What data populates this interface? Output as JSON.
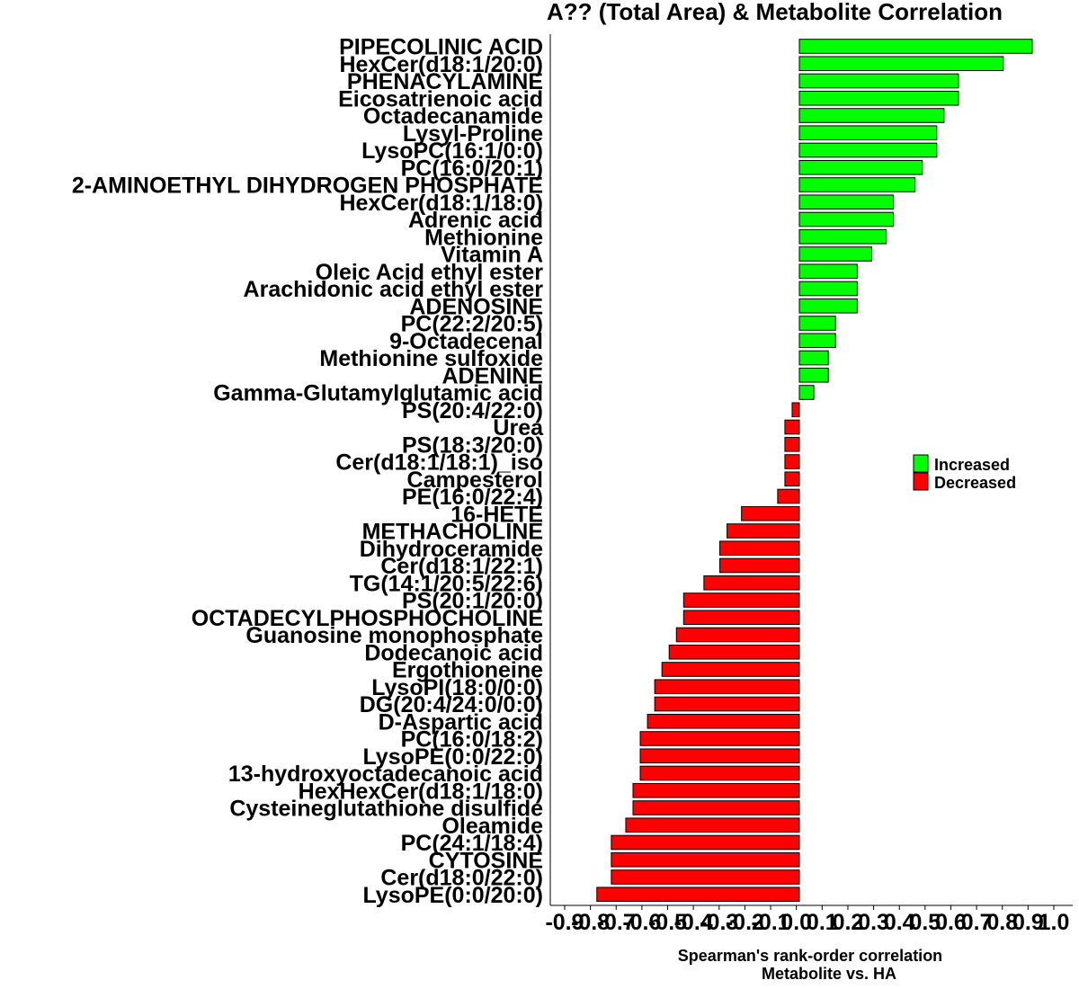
{
  "chart_data": {
    "type": "bar",
    "orientation": "horizontal",
    "title": "A?? (Total Area) & Metabolite Correlation",
    "xlabel_line1": "Spearman's rank-order correlation",
    "xlabel_line2": "Metabolite vs. HA",
    "xlim": [
      -0.9,
      1.0
    ],
    "xticks": [
      "-0.9",
      "-0.8",
      "-0.7",
      "-0.6",
      "-0.5",
      "-0.4",
      "-0.3",
      "-0.2",
      "-0.1",
      "0.0",
      "0.1",
      "0.2",
      "0.3",
      "0.4",
      "0.5",
      "0.6",
      "0.7",
      "0.8",
      "0.9",
      "1.0"
    ],
    "xtick_values": [
      -0.9,
      -0.8,
      -0.7,
      -0.6,
      -0.5,
      -0.4,
      -0.3,
      -0.2,
      -0.1,
      0.0,
      0.1,
      0.2,
      0.3,
      0.4,
      0.5,
      0.6,
      0.7,
      0.8,
      0.9,
      1.0
    ],
    "categories": [
      "PIPECOLINIC ACID",
      "HexCer(d18:1/20:0)",
      "PHENACYLAMINE",
      "Eicosatrienoic acid",
      "Octadecanamide",
      "Lysyl-Proline",
      "LysoPC(16:1/0:0)",
      "PC(16:0/20:1)",
      "2-AMINOETHYL DIHYDROGEN PHOSPHATE",
      "HexCer(d18:1/18:0)",
      "Adrenic acid",
      "Methionine",
      "Vitamin A",
      "Oleic Acid ethyl ester",
      "Arachidonic acid ethyl ester",
      "ADENOSINE",
      "PC(22:2/20:5)",
      "9-Octadecenal",
      "Methionine sulfoxide",
      "ADENINE",
      "Gamma-Glutamylglutamic acid",
      "PS(20:4/22:0)",
      "Urea",
      "PS(18:3/20:0)",
      "Cer(d18:1/18:1)_iso",
      "Campesterol",
      "PE(16:0/22:4)",
      "16-HETE",
      "METHACHOLINE",
      "Dihydroceramide",
      "Cer(d18:1/22:1)",
      "TG(14:1/20:5/22:6)",
      "PS(20:1/20:0)",
      "OCTADECYLPHOSPHOCHOLINE",
      "Guanosine monophosphate",
      "Dodecanoic acid",
      "Ergothioneine",
      "LysoPI(18:0/0:0)",
      "DG(20:4/24:0/0:0)",
      "D-Aspartic acid",
      "PC(16:0/18:2)",
      "LysoPE(0:0/22:0)",
      "13-hydroxyoctadecanoic acid",
      "HexHexCer(d18:1/18:0)",
      "Cysteineglutathione disulfide",
      "Oleamide",
      "PC(24:1/18:4)",
      "CYTOSINE",
      "Cer(d18:0/22:0)",
      "LysoPE(0:0/20:0)"
    ],
    "values": [
      0.805,
      0.705,
      0.55,
      0.55,
      0.5,
      0.475,
      0.475,
      0.425,
      0.4,
      0.325,
      0.325,
      0.3,
      0.25,
      0.2,
      0.2,
      0.2,
      0.125,
      0.125,
      0.1,
      0.1,
      0.05,
      -0.025,
      -0.05,
      -0.05,
      -0.05,
      -0.05,
      -0.075,
      -0.2,
      -0.25,
      -0.275,
      -0.275,
      -0.33,
      -0.4,
      -0.4,
      -0.425,
      -0.45,
      -0.475,
      -0.5,
      -0.5,
      -0.525,
      -0.55,
      -0.55,
      -0.55,
      -0.575,
      -0.575,
      -0.6,
      -0.65,
      -0.65,
      -0.65,
      -0.7
    ],
    "legend": {
      "placement": "right",
      "entries": [
        {
          "label": "Increased",
          "color": "#00ff00"
        },
        {
          "label": "Decreased",
          "color": "#ff0000"
        }
      ]
    },
    "colors": {
      "positive": "#00ff00",
      "negative": "#ff0000",
      "bar_outline": "#000000"
    },
    "grid": false
  }
}
